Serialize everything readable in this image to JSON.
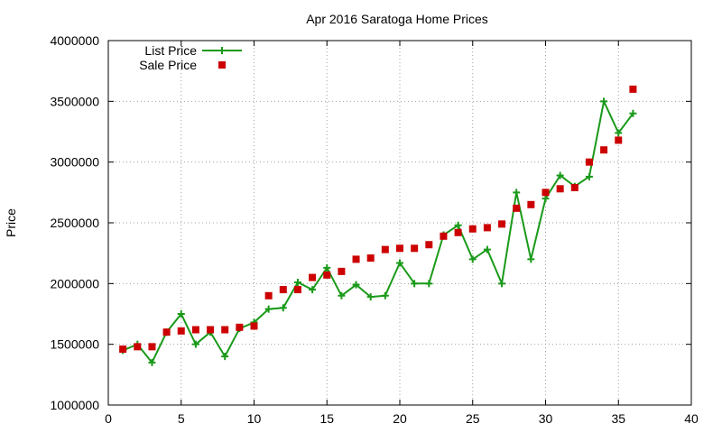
{
  "chart_data": {
    "type": "scatter",
    "title": "Apr 2016 Saratoga Home Prices",
    "xlabel": "",
    "ylabel": "Price",
    "xlim": [
      0,
      40
    ],
    "ylim": [
      1000000,
      4000000
    ],
    "x_ticks": [
      0,
      5,
      10,
      15,
      20,
      25,
      30,
      35,
      40
    ],
    "y_ticks": [
      1000000,
      1500000,
      2000000,
      2500000,
      3000000,
      3500000,
      4000000
    ],
    "x_tick_labels": [
      "0",
      "5",
      "10",
      "15",
      "20",
      "25",
      "30",
      "35",
      "40"
    ],
    "y_tick_labels": [
      "1000000",
      "1500000",
      "2000000",
      "2500000",
      "3000000",
      "3500000",
      "4000000"
    ],
    "grid": true,
    "legend_position": "top-left",
    "series": [
      {
        "name": "List Price",
        "style": "line-with-plus-markers",
        "color": "#1a9a1a",
        "x": [
          1,
          2,
          3,
          4,
          5,
          6,
          7,
          8,
          9,
          10,
          11,
          12,
          13,
          14,
          15,
          16,
          17,
          18,
          19,
          20,
          21,
          22,
          23,
          24,
          25,
          26,
          27,
          28,
          29,
          30,
          31,
          32,
          33,
          34,
          35,
          36
        ],
        "y": [
          1450000,
          1500000,
          1350000,
          1600000,
          1750000,
          1500000,
          1600000,
          1400000,
          1630000,
          1680000,
          1790000,
          1800000,
          2010000,
          1950000,
          2130000,
          1900000,
          1990000,
          1890000,
          1900000,
          2170000,
          2000000,
          2000000,
          2400000,
          2480000,
          2200000,
          2280000,
          2000000,
          2750000,
          2200000,
          2700000,
          2890000,
          2800000,
          2880000,
          3500000,
          3240000,
          3400000
        ]
      },
      {
        "name": "Sale Price",
        "style": "square-markers",
        "color": "#cc0000",
        "x": [
          1,
          2,
          3,
          4,
          5,
          6,
          7,
          8,
          9,
          10,
          11,
          12,
          13,
          14,
          15,
          16,
          17,
          18,
          19,
          20,
          21,
          22,
          23,
          24,
          25,
          26,
          27,
          28,
          29,
          30,
          31,
          32,
          33,
          34,
          35,
          36
        ],
        "y": [
          1460000,
          1480000,
          1480000,
          1600000,
          1610000,
          1620000,
          1620000,
          1620000,
          1640000,
          1650000,
          1900000,
          1950000,
          1950000,
          2050000,
          2070000,
          2100000,
          2200000,
          2210000,
          2280000,
          2290000,
          2290000,
          2320000,
          2390000,
          2420000,
          2450000,
          2460000,
          2490000,
          2620000,
          2650000,
          2750000,
          2780000,
          2790000,
          3000000,
          3100000,
          3180000,
          3600000
        ]
      }
    ]
  }
}
